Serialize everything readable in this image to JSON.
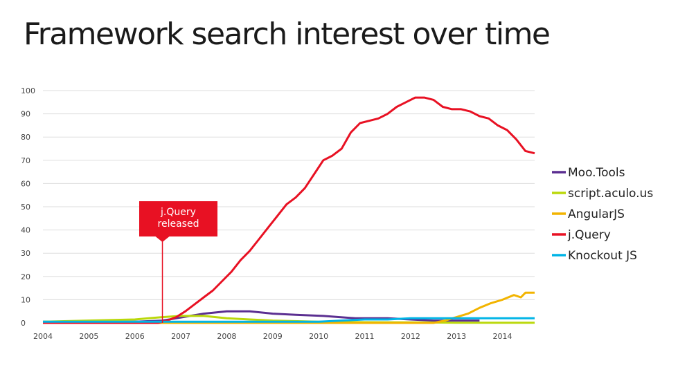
{
  "chart_data": {
    "type": "line",
    "title": "Framework search interest over time",
    "xlabel": "",
    "ylabel": "",
    "xlim": [
      2004,
      2014.7
    ],
    "ylim": [
      0,
      100
    ],
    "y_ticks": [
      0,
      10,
      20,
      30,
      40,
      50,
      60,
      70,
      80,
      90,
      100
    ],
    "x_ticks": [
      2004,
      2005,
      2006,
      2007,
      2008,
      2009,
      2010,
      2011,
      2012,
      2013,
      2014
    ],
    "grid": true,
    "legend_position": "right",
    "series": [
      {
        "name": "Moo.Tools",
        "color": "#5b2f91",
        "x": [
          2004,
          2006,
          2006.6,
          2006.9,
          2007.2,
          2007.5,
          2008,
          2008.5,
          2009,
          2009.5,
          2010.1,
          2010.8,
          2011.5,
          2012,
          2012.5,
          2013,
          2013.5
        ],
        "y": [
          0.5,
          0.5,
          1,
          2,
          3,
          4,
          5,
          5,
          4,
          3.5,
          3,
          2,
          2,
          1.5,
          1,
          1,
          1
        ]
      },
      {
        "name": "script.aculo.us",
        "color": "#bad80a",
        "x": [
          2004,
          2005,
          2006,
          2006.3,
          2006.6,
          2007,
          2007.5,
          2008,
          2008.5,
          2009,
          2010,
          2011,
          2012,
          2013,
          2014,
          2014.7
        ],
        "y": [
          0.5,
          1,
          1.5,
          2,
          2.5,
          3,
          3,
          2,
          1.5,
          1,
          0.5,
          0.3,
          0.2,
          0.1,
          0.1,
          0.1
        ]
      },
      {
        "name": "AngularJS",
        "color": "#f2b400",
        "x": [
          2004,
          2012.5,
          2012.75,
          2013,
          2013.25,
          2013.5,
          2013.75,
          2014,
          2014.25,
          2014.4,
          2014.5,
          2014.7
        ],
        "y": [
          0,
          0,
          1,
          2.5,
          4,
          6.5,
          8.5,
          10,
          12,
          11,
          13,
          13
        ]
      },
      {
        "name": "j.Query",
        "color": "#e81123",
        "x": [
          2004,
          2006.5,
          2006.7,
          2006.9,
          2007.1,
          2007.3,
          2007.5,
          2007.7,
          2007.9,
          2008.1,
          2008.3,
          2008.5,
          2008.7,
          2008.9,
          2009.1,
          2009.3,
          2009.5,
          2009.7,
          2009.9,
          2010.1,
          2010.3,
          2010.5,
          2010.7,
          2010.9,
          2011.1,
          2011.3,
          2011.5,
          2011.7,
          2011.9,
          2012.1,
          2012.3,
          2012.5,
          2012.7,
          2012.9,
          2013.1,
          2013.3,
          2013.5,
          2013.7,
          2013.9,
          2014.1,
          2014.3,
          2014.5,
          2014.7
        ],
        "y": [
          0,
          0,
          1,
          2.5,
          5,
          8,
          11,
          14,
          18,
          22,
          27,
          31,
          36,
          41,
          46,
          51,
          54,
          58,
          64,
          70,
          72,
          75,
          82,
          86,
          87,
          88,
          90,
          93,
          95,
          97,
          97,
          96,
          93,
          92,
          92,
          91,
          89,
          88,
          85,
          83,
          79,
          74,
          73
        ]
      },
      {
        "name": "Knockout JS",
        "color": "#00b4e6",
        "x": [
          2004,
          2010,
          2010.5,
          2011,
          2011.5,
          2012,
          2013,
          2014,
          2014.7
        ],
        "y": [
          0.5,
          0.5,
          1,
          1.5,
          1.5,
          2,
          2,
          2,
          2
        ]
      }
    ],
    "annotations": [
      {
        "line1": "j.Query",
        "line2": "released",
        "x": 2006.6,
        "color": "#e81123"
      }
    ]
  }
}
